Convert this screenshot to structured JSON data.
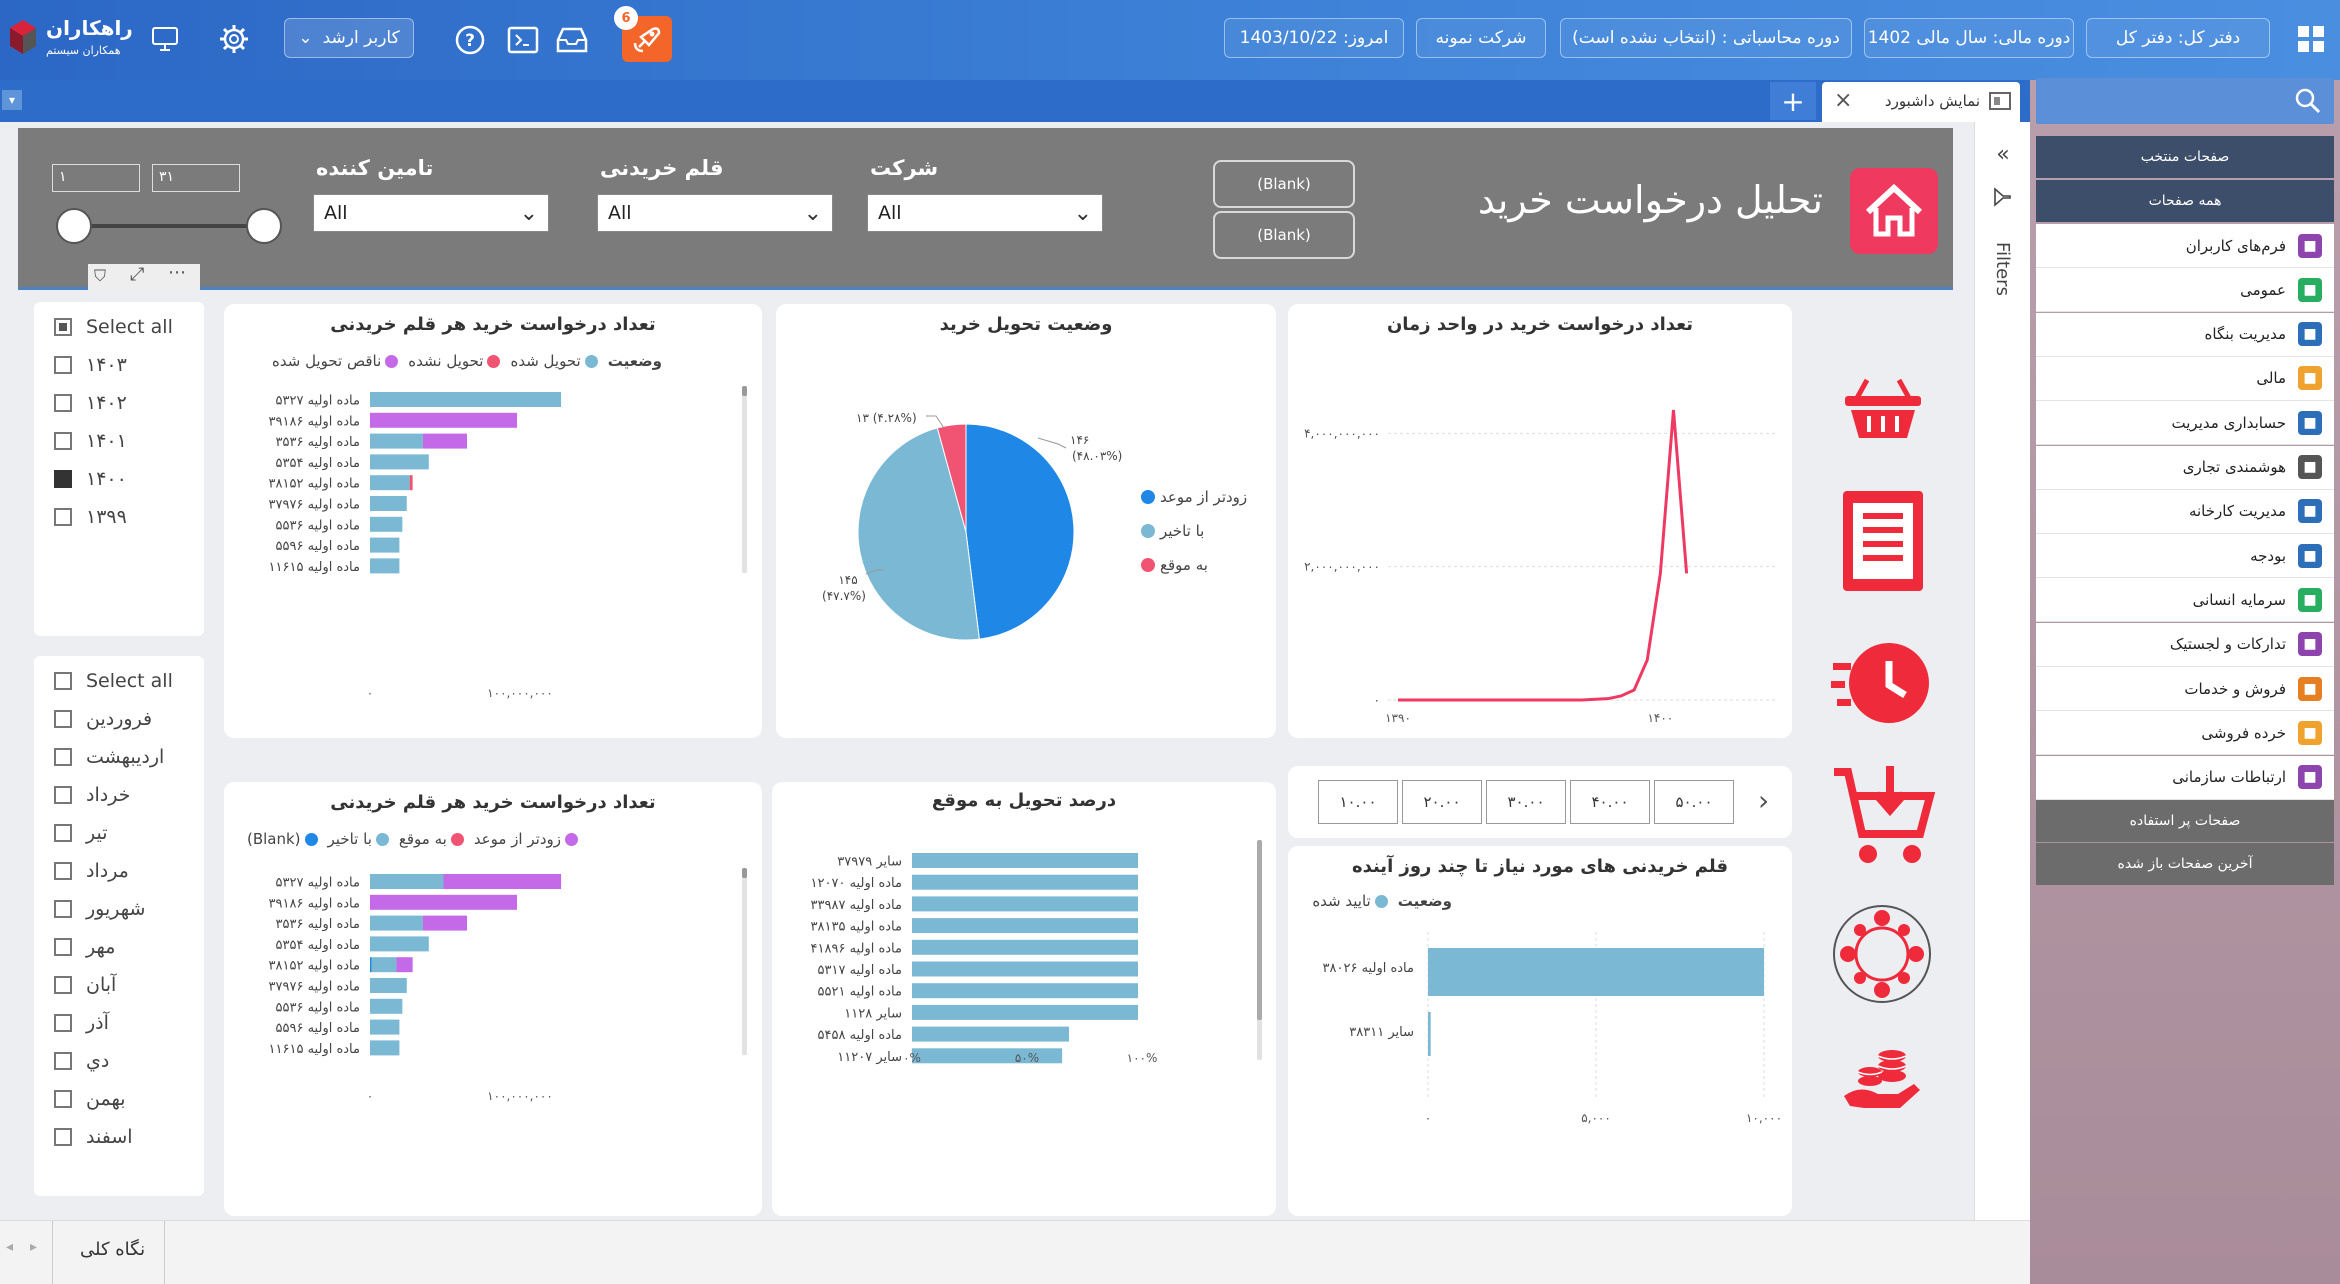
{
  "topbar": {
    "logo_title": "راهکاران",
    "logo_sub": "همکاران سیستم",
    "user_label": "کاربر ارشد",
    "badge_count": "6",
    "date": "امروز: 1403/10/22",
    "company": "شرکت نمونه",
    "period": "دوره محاسباتی : (انتخاب نشده است)",
    "fiscal": "دوره مالی: سال مالی 1402",
    "ledger": "دفتر کل: دفتر کل"
  },
  "tab": {
    "title": "نمایش داشبورد",
    "add": "+",
    "close": "×"
  },
  "filters_label": "Filters",
  "status": {
    "tab": "نگاه کلی"
  },
  "sidebar": {
    "fav": "صفحات منتخب",
    "all": "همه صفحات",
    "items": [
      {
        "label": "فرم‌های کاربران",
        "icon": "forms-icon",
        "color": "#8e44ad"
      },
      {
        "label": "عمومی",
        "icon": "general-icon",
        "color": "#27ae60"
      },
      {
        "label": "مدیریت بنگاه",
        "icon": "enterprise-icon",
        "color": "#2c6fb8"
      },
      {
        "label": "مالی",
        "icon": "finance-icon",
        "color": "#f0a22e"
      },
      {
        "label": "حسابداری مدیریت",
        "icon": "accounting-icon",
        "color": "#2c6fb8"
      },
      {
        "label": "هوشمندی تجاری",
        "icon": "bi-icon",
        "color": "#555555"
      },
      {
        "label": "مدیریت کارخانه",
        "icon": "factory-icon",
        "color": "#2c6fb8"
      },
      {
        "label": "بودجه",
        "icon": "budget-icon",
        "color": "#2c6fb8"
      },
      {
        "label": "سرمایه انسانی",
        "icon": "hr-icon",
        "color": "#27ae60"
      },
      {
        "label": "تدارکات و لجستیک",
        "icon": "logistics-icon",
        "color": "#8e44ad"
      },
      {
        "label": "فروش و خدمات",
        "icon": "sales-icon",
        "color": "#e67e22"
      },
      {
        "label": "خرده فروشی",
        "icon": "retail-icon",
        "color": "#f0a22e"
      },
      {
        "label": "ارتباطات سازمانی",
        "icon": "communication-icon",
        "color": "#8e44ad"
      }
    ],
    "popular": "صفحات پر استفاده",
    "recent": "آخرین صفحات باز شده"
  },
  "header": {
    "title": "تحلیل درخواست خرید",
    "blank1": "(Blank)",
    "blank2": "(Blank)",
    "company_label": "شرکت",
    "company_value": "All",
    "item_label": "قلم خریدنی",
    "item_value": "All",
    "supplier_label": "تامین کننده",
    "supplier_value": "All",
    "range_min": "۱",
    "range_max": "۳۱"
  },
  "year_slicer": {
    "items": [
      {
        "label": "Select all",
        "state": "part"
      },
      {
        "label": "۱۴۰۳",
        "state": "off"
      },
      {
        "label": "۱۴۰۲",
        "state": "off"
      },
      {
        "label": "۱۴۰۱",
        "state": "off"
      },
      {
        "label": "۱۴۰۰",
        "state": "on"
      },
      {
        "label": "۱۳۹۹",
        "state": "off"
      }
    ]
  },
  "month_slicer": {
    "items": [
      {
        "label": "Select all"
      },
      {
        "label": "فروردین"
      },
      {
        "label": "اردیبهشت"
      },
      {
        "label": "خرداد"
      },
      {
        "label": "تیر"
      },
      {
        "label": "مرداد"
      },
      {
        "label": "شهریور"
      },
      {
        "label": "مهر"
      },
      {
        "label": "آبان"
      },
      {
        "label": "آذر"
      },
      {
        "label": "دي"
      },
      {
        "label": "بهمن"
      },
      {
        "label": "اسفند"
      }
    ]
  },
  "side_icons": [
    "basket-icon",
    "document-icon",
    "fast-clock-icon",
    "cart-download-icon",
    "network-people-icon",
    "coins-hand-icon"
  ],
  "chart_data": [
    {
      "id": "bar1",
      "type": "bar",
      "orientation": "horizontal",
      "stacked": true,
      "title": "تعداد درخواست خرید هر قلم خریدنی",
      "legend_title": "وضعیت",
      "categories": [
        "ماده اولیه ۵۳۲۷",
        "ماده اولیه ۳۹۱۸۶",
        "ماده اولیه ۳۵۳۶",
        "ماده اولیه ۵۳۵۴",
        "ماده اولیه ۳۸۱۵۲",
        "ماده اولیه ۳۷۹۷۶",
        "ماده اولیه ۵۵۳۶",
        "ماده اولیه ۵۵۹۶",
        "ماده اولیه ۱۱۶۱۵"
      ],
      "series": [
        {
          "name": "تحویل شده",
          "color": "#7ab8d4",
          "values": [
            130000000,
            0,
            36000000,
            40000000,
            27000000,
            25000000,
            22000000,
            20000000,
            20000000
          ]
        },
        {
          "name": "تحویل نشده",
          "color": "#f05472",
          "values": [
            0,
            0,
            0,
            0,
            2000000,
            0,
            0,
            0,
            0
          ]
        },
        {
          "name": "ناقص تحویل شده",
          "color": "#c46ae8",
          "values": [
            0,
            100000000,
            30000000,
            0,
            0,
            0,
            0,
            0,
            0
          ]
        }
      ],
      "xticks": [
        "۰",
        "۱۰۰,۰۰۰,۰۰۰"
      ],
      "xlim": [
        0,
        200000000
      ]
    },
    {
      "id": "pie",
      "type": "pie",
      "title": "وضعیت تحویل خرید",
      "categories": [
        "زودتر از موعد",
        "با تاخیر",
        "به موقع"
      ],
      "values": [
        146,
        145,
        13
      ],
      "colors": [
        "#1f87e6",
        "#7ab8d4",
        "#f05472"
      ],
      "labels": [
        "۱۴۶",
        "۱۴۵",
        "۱۳ (۴.۲۸%)"
      ],
      "pct_labels": [
        "(۴۸.۰۳%)",
        "(۴۷.۷%)"
      ]
    },
    {
      "id": "line",
      "type": "line",
      "title": "تعداد درخواست خرید در واحد زمان",
      "x": [
        1390,
        1391,
        1392,
        1393,
        1394,
        1395,
        1396,
        1397,
        1398,
        1398.5,
        1399,
        1399.5,
        1400,
        1400.5,
        1401
      ],
      "y": [
        0,
        0,
        0,
        0,
        0,
        0,
        0,
        0,
        20000000,
        60000000,
        150000000,
        600000000,
        1900000000,
        4350000000,
        1900000000
      ],
      "xticks": [
        "۱۳۹۰",
        "۱۴۰۰"
      ],
      "yticks": [
        "۰",
        "۲,۰۰۰,۰۰۰,۰۰۰",
        "۴,۰۰۰,۰۰۰,۰۰۰"
      ],
      "ylim": [
        0,
        4500000000
      ],
      "color": "#ee3a63"
    },
    {
      "id": "bar2",
      "type": "bar",
      "orientation": "horizontal",
      "stacked": true,
      "title": "تعداد درخواست خرید هر قلم خریدنی",
      "categories": [
        "ماده اولیه ۵۳۲۷",
        "ماده اولیه ۳۹۱۸۶",
        "ماده اولیه ۳۵۳۶",
        "ماده اولیه ۵۳۵۴",
        "ماده اولیه ۳۸۱۵۲",
        "ماده اولیه ۳۷۹۷۶",
        "ماده اولیه ۵۵۳۶",
        "ماده اولیه ۵۵۹۶",
        "ماده اولیه ۱۱۶۱۵"
      ],
      "series": [
        {
          "name": "(Blank)",
          "color": "#1f87e6",
          "values": [
            0,
            0,
            0,
            0,
            1000000,
            0,
            0,
            0,
            0
          ]
        },
        {
          "name": "با تاخیر",
          "color": "#7ab8d4",
          "values": [
            50000000,
            0,
            36000000,
            40000000,
            17000000,
            25000000,
            22000000,
            20000000,
            20000000
          ]
        },
        {
          "name": "به موقع",
          "color": "#f05472",
          "values": [
            0,
            0,
            0,
            0,
            0,
            0,
            0,
            0,
            0
          ]
        },
        {
          "name": "زودتر از موعد",
          "color": "#c46ae8",
          "values": [
            80000000,
            100000000,
            30000000,
            0,
            11000000,
            0,
            0,
            0,
            0
          ]
        }
      ],
      "xticks": [
        "۰",
        "۱۰۰,۰۰۰,۰۰۰"
      ],
      "xlim": [
        0,
        200000000
      ]
    },
    {
      "id": "bar3",
      "type": "bar",
      "orientation": "horizontal",
      "title": "درصد تحویل به موقع",
      "categories": [
        "سایر ۳۷۹۷۹",
        "ماده اولیه ۱۲۰۷۰",
        "ماده اولیه ۳۳۹۸۷",
        "ماده اولیه ۳۸۱۳۵",
        "ماده اولیه ۴۱۸۹۶",
        "ماده اولیه ۵۳۱۷",
        "ماده اولیه ۵۵۲۱",
        "سایر ۱۱۲۸",
        "ماده اولیه ۵۴۵۸",
        "سایر ۱۱۲۰۷"
      ],
      "values": [
        100,
        100,
        100,
        100,
        100,
        100,
        100,
        100,
        70,
        67
      ],
      "color": "#7ab8d4",
      "xticks": [
        "۰%",
        "۵۰%",
        "۱۰۰%"
      ],
      "xlim": [
        0,
        100
      ]
    },
    {
      "id": "bar4",
      "type": "bar",
      "orientation": "horizontal",
      "title": "قلم خریدنی های مورد نیاز تا چند روز آینده",
      "legend_title": "وضعیت",
      "categories": [
        "ماده اولیه ۳۸۰۲۶",
        "سایر ۳۸۳۱۱"
      ],
      "series": [
        {
          "name": "تایید شده",
          "color": "#7ab8d4",
          "values": [
            10000,
            80
          ]
        }
      ],
      "xticks": [
        "۰",
        "۵,۰۰۰",
        "۱۰,۰۰۰"
      ],
      "xlim": [
        0,
        10000
      ]
    }
  ],
  "days_buttons": [
    "۵۰.۰۰",
    "۴۰.۰۰",
    "۳۰.۰۰",
    "۲۰.۰۰",
    "۱۰.۰۰"
  ]
}
